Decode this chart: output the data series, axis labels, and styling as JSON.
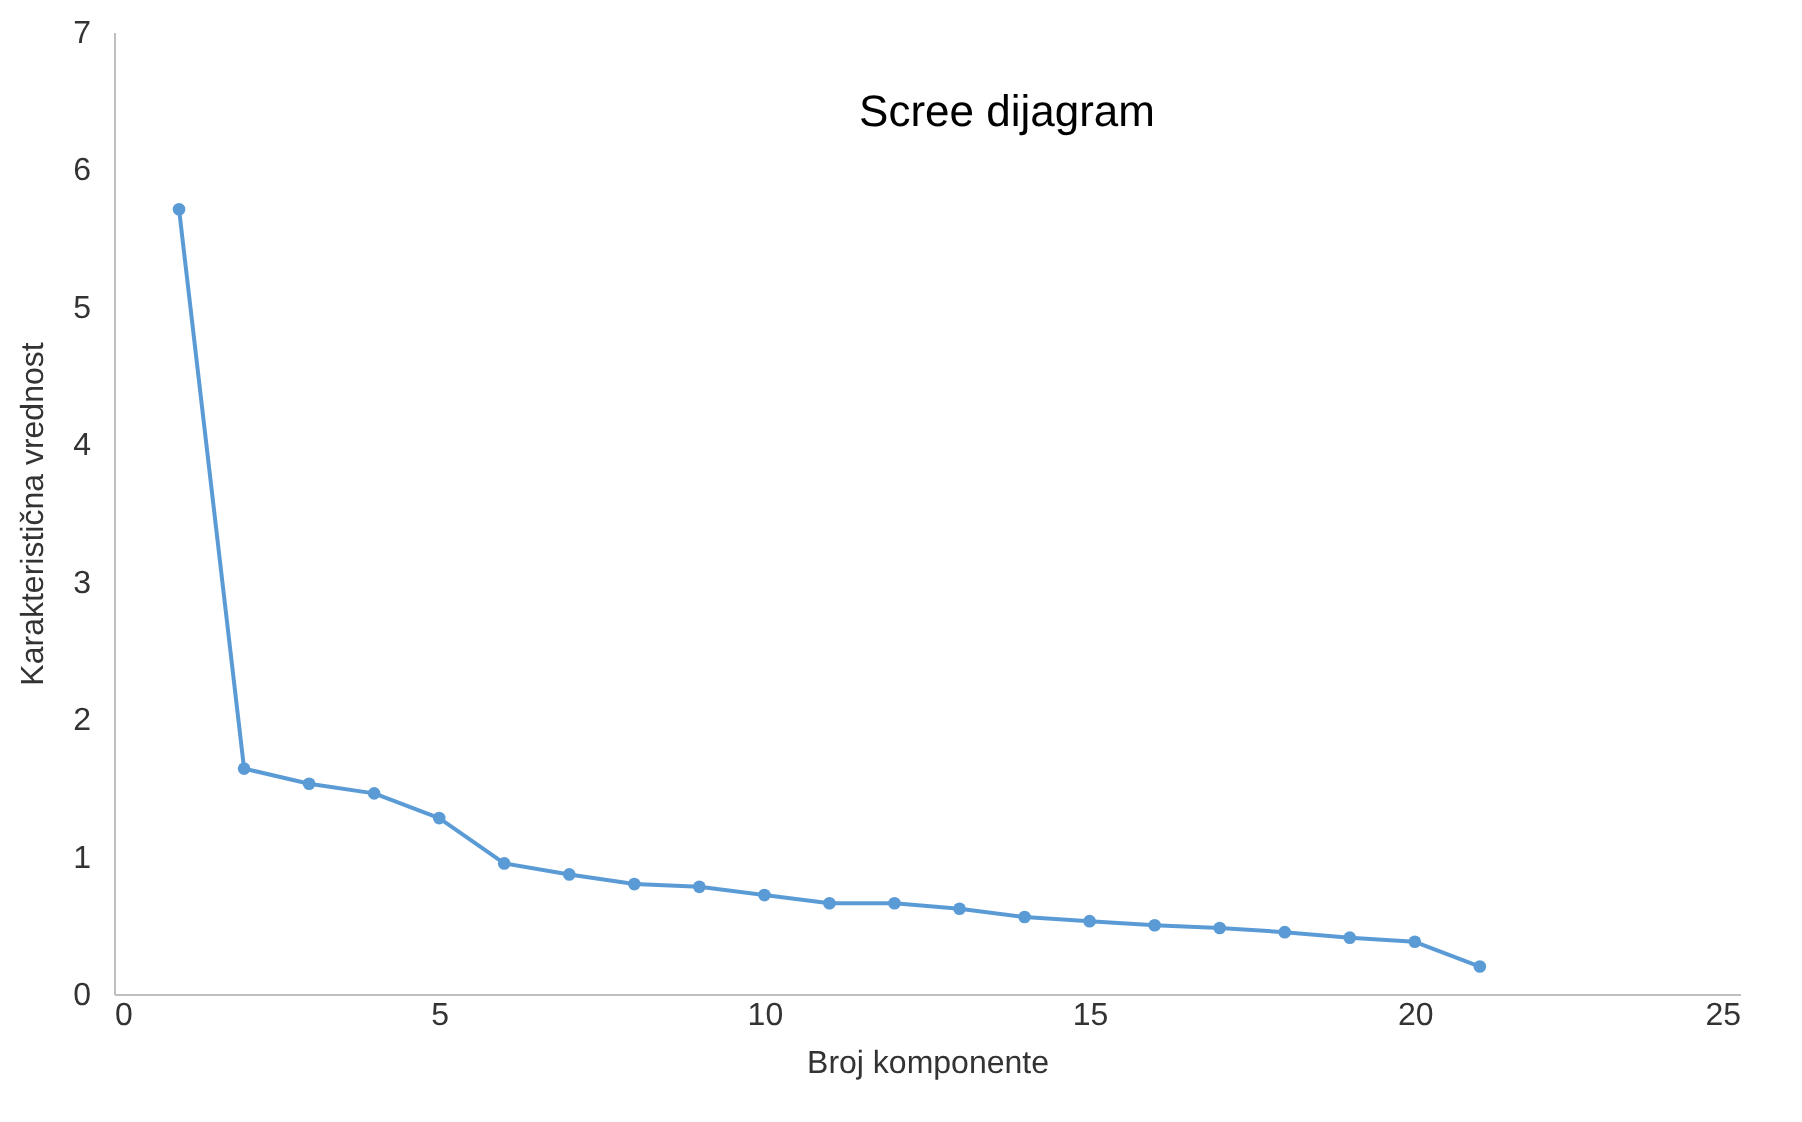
{
  "chart_data": {
    "type": "line",
    "title": "Scree dijagram",
    "xlabel": "Broj komponente",
    "ylabel": "Karakteristična vrednost",
    "x": [
      1,
      2,
      3,
      4,
      5,
      6,
      7,
      8,
      9,
      10,
      11,
      12,
      13,
      14,
      15,
      16,
      17,
      18,
      19,
      20,
      21
    ],
    "series": [
      {
        "color": "#5b9bd5",
        "values": [
          5.71,
          1.64,
          1.53,
          1.46,
          1.28,
          0.95,
          0.87,
          0.8,
          0.78,
          0.72,
          0.66,
          0.66,
          0.62,
          0.56,
          0.53,
          0.5,
          0.48,
          0.45,
          0.41,
          0.38,
          0.2
        ]
      }
    ],
    "xlim": [
      0,
      25
    ],
    "xticks": [
      0,
      5,
      10,
      15,
      20,
      25
    ],
    "ylim": [
      0,
      7
    ],
    "yticks": [
      0,
      1,
      2,
      3,
      4,
      5,
      6,
      7
    ],
    "grid": false,
    "marker": "circle",
    "line_style": "solid"
  }
}
